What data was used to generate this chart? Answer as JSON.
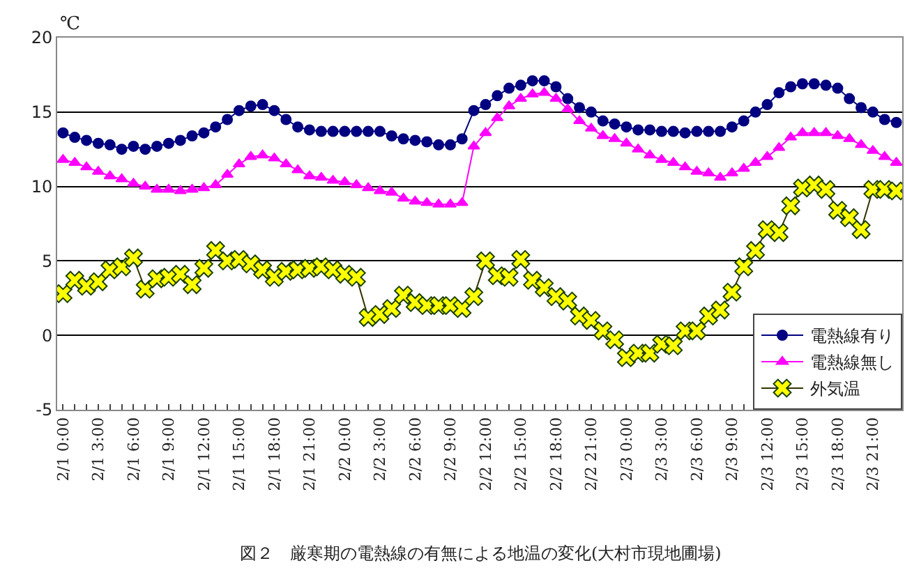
{
  "chart_data": {
    "type": "line",
    "title": "図２　厳寒期の電熱線の有無による地温の変化(大村市現地圃場)",
    "ylabel": "℃",
    "categories": [
      "2/1 0:00",
      null,
      null,
      "2/1 3:00",
      null,
      null,
      "2/1 6:00",
      null,
      null,
      "2/1 9:00",
      null,
      null,
      "2/1 12:00",
      null,
      null,
      "2/1 15:00",
      null,
      null,
      "2/1 18:00",
      null,
      null,
      "2/1 21:00",
      null,
      null,
      "2/2 0:00",
      null,
      null,
      "2/2 3:00",
      null,
      null,
      "2/2 6:00",
      null,
      null,
      "2/2 9:00",
      null,
      null,
      "2/2 12:00",
      null,
      null,
      "2/2 15:00",
      null,
      null,
      "2/2 18:00",
      null,
      null,
      "2/2 21:00",
      null,
      null,
      "2/3 0:00",
      null,
      null,
      "2/3 3:00",
      null,
      null,
      "2/3 6:00",
      null,
      null,
      "2/3 9:00",
      null,
      null,
      "2/3 12:00",
      null,
      null,
      "2/3 15:00",
      null,
      null,
      "2/3 18:00",
      null,
      null,
      "2/3 21:00",
      null,
      null
    ],
    "series": [
      {
        "name": "電熱線有り",
        "color": "#000080",
        "marker": "circle",
        "values": [
          13.6,
          13.3,
          13.1,
          12.9,
          12.8,
          12.5,
          12.7,
          12.5,
          12.7,
          12.9,
          13.1,
          13.4,
          13.6,
          14.0,
          14.5,
          15.1,
          15.4,
          15.5,
          15.1,
          14.5,
          14.0,
          13.8,
          13.7,
          13.7,
          13.7,
          13.7,
          13.7,
          13.7,
          13.4,
          13.2,
          13.1,
          13.0,
          12.8,
          12.8,
          13.2,
          15.1,
          15.5,
          16.1,
          16.6,
          16.8,
          17.1,
          17.1,
          16.7,
          15.9,
          15.3,
          15.0,
          14.4,
          14.2,
          14.0,
          13.8,
          13.8,
          13.7,
          13.7,
          13.6,
          13.7,
          13.7,
          13.7,
          14.0,
          14.4,
          15.0,
          15.5,
          16.3,
          16.7,
          16.9,
          16.9,
          16.8,
          16.6,
          15.9,
          15.3,
          15.0,
          14.5,
          14.3
        ]
      },
      {
        "name": "電熱線無し",
        "color": "#ff00ff",
        "marker": "triangle",
        "values": [
          11.8,
          11.6,
          11.3,
          11.0,
          10.7,
          10.5,
          10.2,
          10.0,
          9.8,
          9.8,
          9.7,
          9.8,
          9.9,
          10.1,
          10.8,
          11.5,
          12.0,
          12.1,
          11.9,
          11.5,
          11.1,
          10.7,
          10.6,
          10.4,
          10.3,
          10.1,
          9.9,
          9.7,
          9.6,
          9.2,
          9.0,
          8.9,
          8.8,
          8.8,
          8.9,
          12.7,
          13.6,
          14.6,
          15.4,
          15.9,
          16.2,
          16.3,
          15.9,
          15.2,
          14.4,
          13.9,
          13.4,
          13.2,
          12.9,
          12.5,
          12.1,
          11.8,
          11.6,
          11.3,
          11.0,
          10.9,
          10.6,
          10.9,
          11.2,
          11.6,
          12.0,
          12.6,
          13.3,
          13.6,
          13.6,
          13.6,
          13.4,
          13.2,
          12.8,
          12.4,
          12.0,
          11.6
        ]
      },
      {
        "name": "外気温",
        "color": "#ffff00",
        "marker": "cross",
        "values": [
          2.8,
          3.7,
          3.3,
          3.6,
          4.4,
          4.6,
          5.2,
          3.1,
          3.8,
          3.9,
          4.1,
          3.4,
          4.5,
          5.7,
          5.0,
          5.1,
          4.8,
          4.4,
          3.9,
          4.3,
          4.4,
          4.5,
          4.6,
          4.4,
          4.1,
          3.9,
          1.2,
          1.4,
          1.8,
          2.7,
          2.2,
          2.0,
          2.0,
          2.0,
          1.8,
          2.6,
          5.0,
          4.0,
          3.9,
          5.1,
          3.7,
          3.2,
          2.6,
          2.3,
          1.3,
          1.0,
          0.3,
          -0.3,
          -1.5,
          -1.2,
          -1.2,
          -0.6,
          -0.7,
          0.3,
          0.3,
          1.3,
          1.7,
          2.9,
          4.6,
          5.7,
          7.1,
          6.9,
          8.7,
          9.9,
          10.1,
          9.8,
          8.4,
          7.9,
          7.1,
          9.8,
          9.8,
          9.7
        ]
      }
    ],
    "ylim": [
      -5,
      20
    ],
    "yticks": [
      -5,
      0,
      5,
      10,
      15,
      20
    ],
    "grid": "y",
    "legend": "bottom right",
    "line_style": "solid"
  }
}
